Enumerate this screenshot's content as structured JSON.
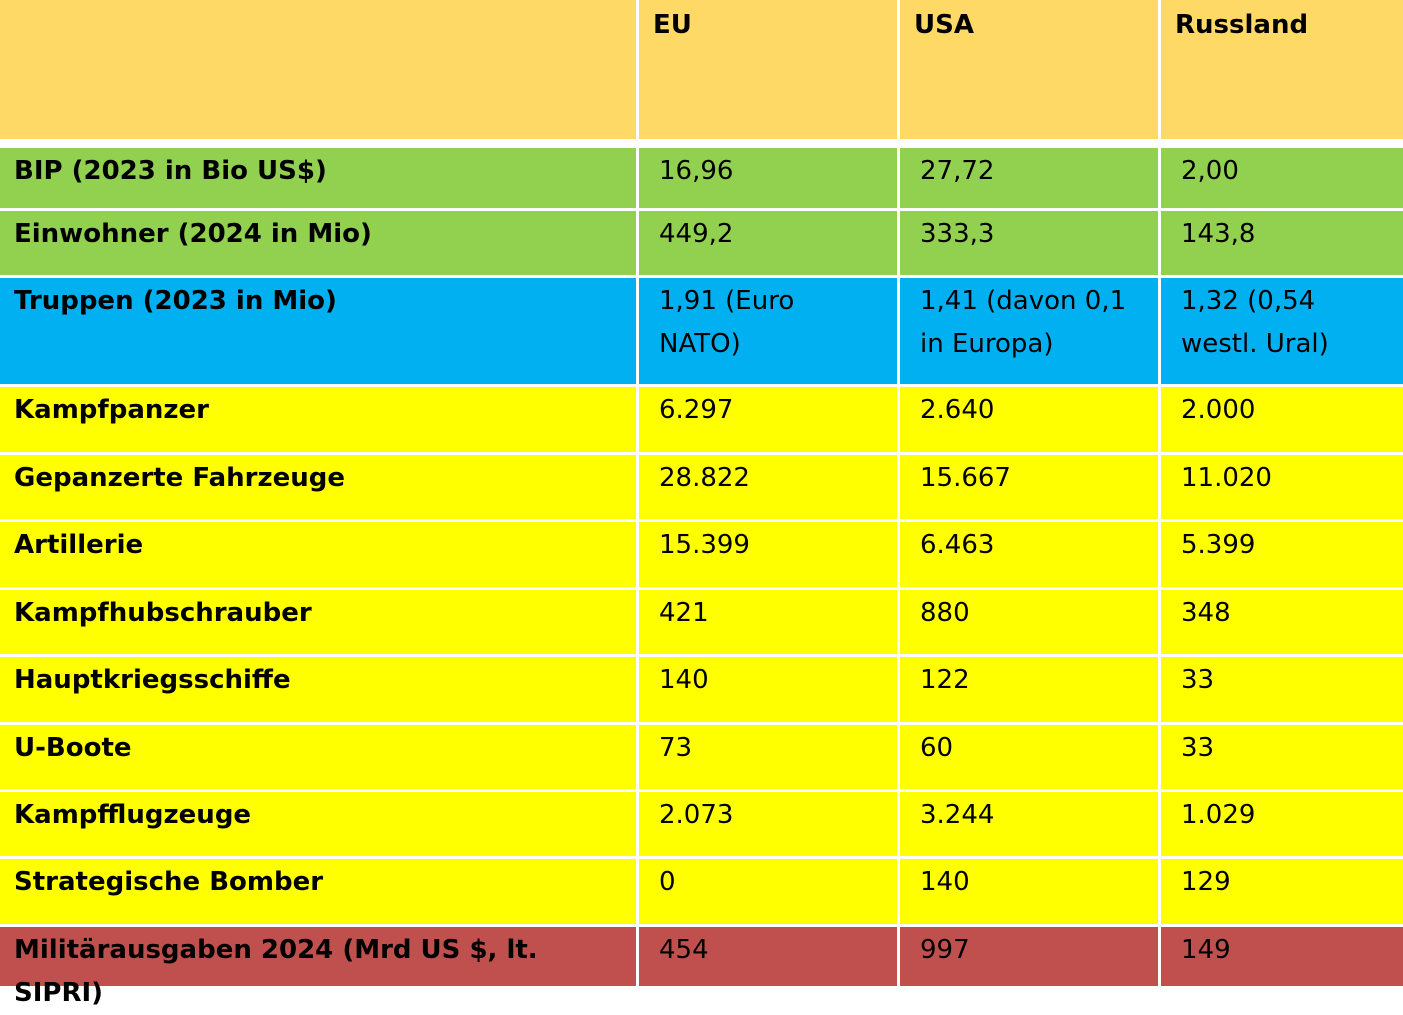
{
  "colors": {
    "header": "#FFD966",
    "economy": "#92D050",
    "troops": "#00B0F0",
    "equipment": "#FFFF00",
    "spending": "#C0504D"
  },
  "columns": [
    "EU",
    "USA",
    "Russland"
  ],
  "rows": [
    {
      "label": "BIP (2023 in Bio US$)",
      "group": "economy",
      "values": [
        "16,96",
        "27,72",
        "2,00"
      ]
    },
    {
      "label": "Einwohner (2024 in Mio)",
      "group": "economy",
      "values": [
        "449,2",
        "333,3",
        "143,8"
      ]
    },
    {
      "label": "Truppen (2023 in Mio)",
      "group": "troops",
      "values": [
        "1,91 (Euro NATO)",
        "1,41 (davon 0,1 in Europa)",
        "1,32 (0,54 westl. Ural)"
      ]
    },
    {
      "label": "Kampfpanzer",
      "group": "equipment",
      "values": [
        "6.297",
        "2.640",
        "2.000"
      ]
    },
    {
      "label": "Gepanzerte Fahrzeuge",
      "group": "equipment",
      "values": [
        "28.822",
        "15.667",
        "11.020"
      ]
    },
    {
      "label": "Artillerie",
      "group": "equipment",
      "values": [
        "15.399",
        "6.463",
        "5.399"
      ]
    },
    {
      "label": "Kampfhubschrauber",
      "group": "equipment",
      "values": [
        "421",
        "880",
        "348"
      ]
    },
    {
      "label": "Hauptkriegsschiffe",
      "group": "equipment",
      "values": [
        "140",
        "122",
        "33"
      ]
    },
    {
      "label": "U-Boote",
      "group": "equipment",
      "values": [
        "73",
        "60",
        "33"
      ]
    },
    {
      "label": "Kampfflugzeuge",
      "group": "equipment",
      "values": [
        "2.073",
        "3.244",
        "1.029"
      ]
    },
    {
      "label": "Strategische Bomber",
      "group": "equipment",
      "values": [
        "0",
        "140",
        "129"
      ]
    },
    {
      "label": "Militärausgaben 2024 (Mrd US $, lt. SIPRI)",
      "group": "spending",
      "values": [
        "454",
        "997",
        "149"
      ]
    }
  ]
}
